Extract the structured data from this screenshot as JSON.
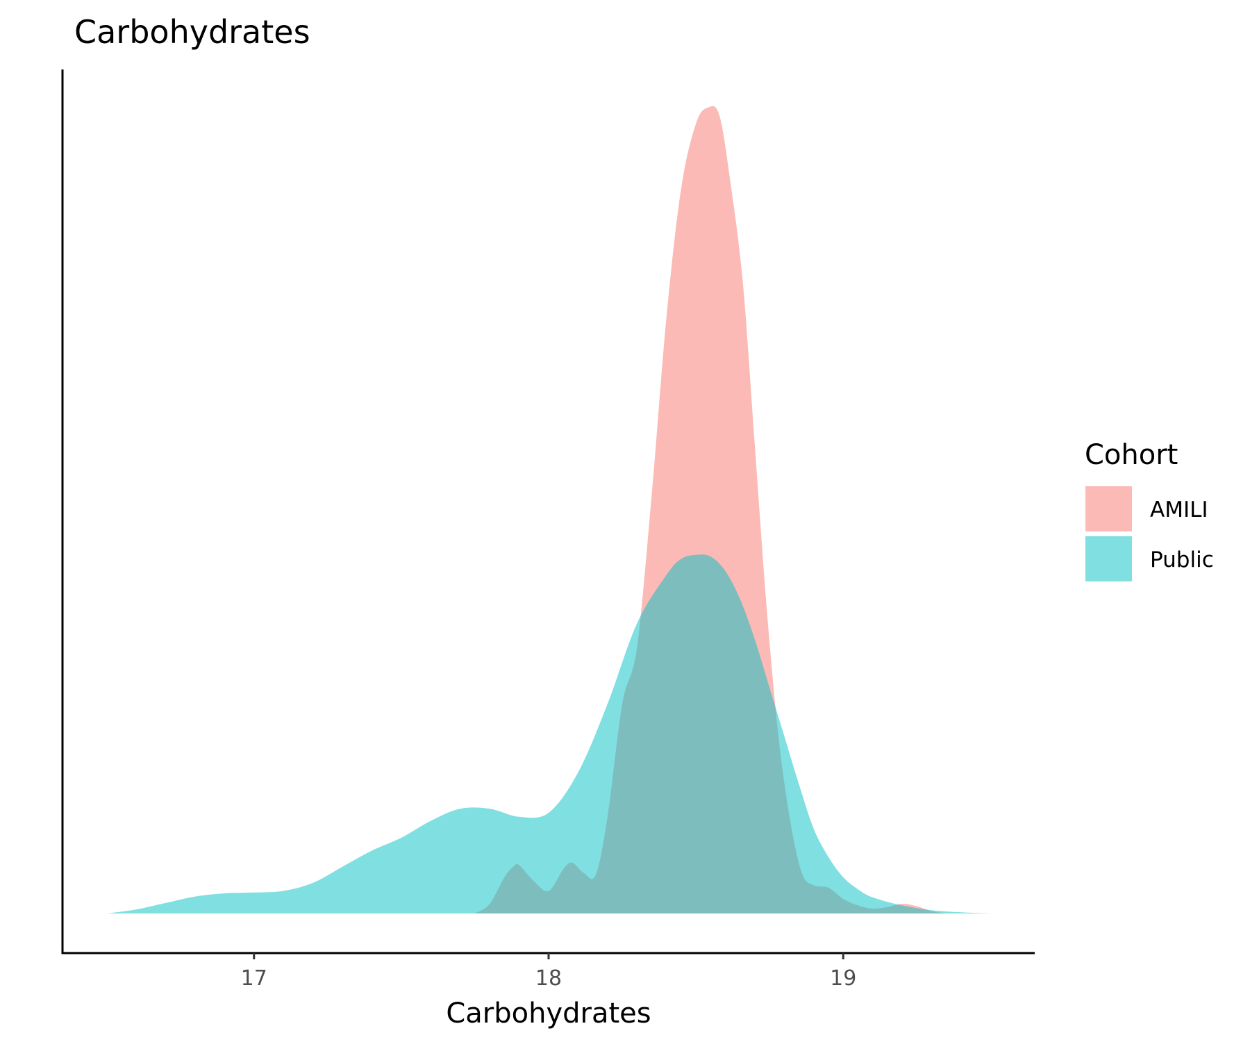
{
  "chart_data": {
    "type": "area",
    "title": "Carbohydrates",
    "xlabel": "Carbohydrates",
    "ylabel": "",
    "xlim": [
      16.35,
      19.65
    ],
    "ylim": [
      0,
      1.0
    ],
    "x_ticks": [
      17,
      18,
      19
    ],
    "x_tick_labels": [
      "17",
      "18",
      "19"
    ],
    "grid": false,
    "legend": {
      "title": "Cohort",
      "position": "right",
      "entries": [
        {
          "label": "AMILI",
          "color": "#F8766D"
        },
        {
          "label": "Public",
          "color": "#00BFC4"
        }
      ]
    },
    "series": [
      {
        "name": "AMILI",
        "color": "#F8766D",
        "opacity": 0.5,
        "x": [
          17.75,
          17.8,
          17.85,
          17.88,
          17.9,
          17.95,
          18.0,
          18.05,
          18.08,
          18.12,
          18.16,
          18.2,
          18.25,
          18.3,
          18.35,
          18.4,
          18.45,
          18.5,
          18.54,
          18.58,
          18.62,
          18.66,
          18.7,
          18.74,
          18.78,
          18.82,
          18.86,
          18.9,
          18.95,
          19.0,
          19.05,
          19.1,
          19.15,
          19.2,
          19.25,
          19.3,
          19.35
        ],
        "y": [
          0.0,
          0.012,
          0.045,
          0.058,
          0.06,
          0.04,
          0.028,
          0.055,
          0.063,
          0.05,
          0.048,
          0.12,
          0.26,
          0.33,
          0.52,
          0.74,
          0.9,
          0.98,
          1.0,
          0.99,
          0.9,
          0.78,
          0.58,
          0.38,
          0.22,
          0.115,
          0.05,
          0.035,
          0.032,
          0.018,
          0.01,
          0.006,
          0.008,
          0.012,
          0.009,
          0.003,
          0.0
        ]
      },
      {
        "name": "Public",
        "color": "#00BFC4",
        "opacity": 0.5,
        "x": [
          16.5,
          16.6,
          16.7,
          16.8,
          16.9,
          17.0,
          17.1,
          17.2,
          17.3,
          17.4,
          17.5,
          17.6,
          17.7,
          17.8,
          17.9,
          18.0,
          18.1,
          18.2,
          18.3,
          18.4,
          18.45,
          18.5,
          18.55,
          18.6,
          18.65,
          18.7,
          18.75,
          18.8,
          18.85,
          18.9,
          18.95,
          19.0,
          19.05,
          19.1,
          19.2,
          19.3,
          19.4,
          19.5
        ],
        "y": [
          0.0,
          0.005,
          0.013,
          0.021,
          0.025,
          0.026,
          0.028,
          0.038,
          0.058,
          0.078,
          0.094,
          0.115,
          0.13,
          0.13,
          0.12,
          0.125,
          0.175,
          0.26,
          0.36,
          0.42,
          0.44,
          0.445,
          0.443,
          0.425,
          0.39,
          0.34,
          0.28,
          0.22,
          0.16,
          0.105,
          0.07,
          0.045,
          0.03,
          0.02,
          0.01,
          0.004,
          0.0015,
          0.0
        ]
      }
    ]
  }
}
